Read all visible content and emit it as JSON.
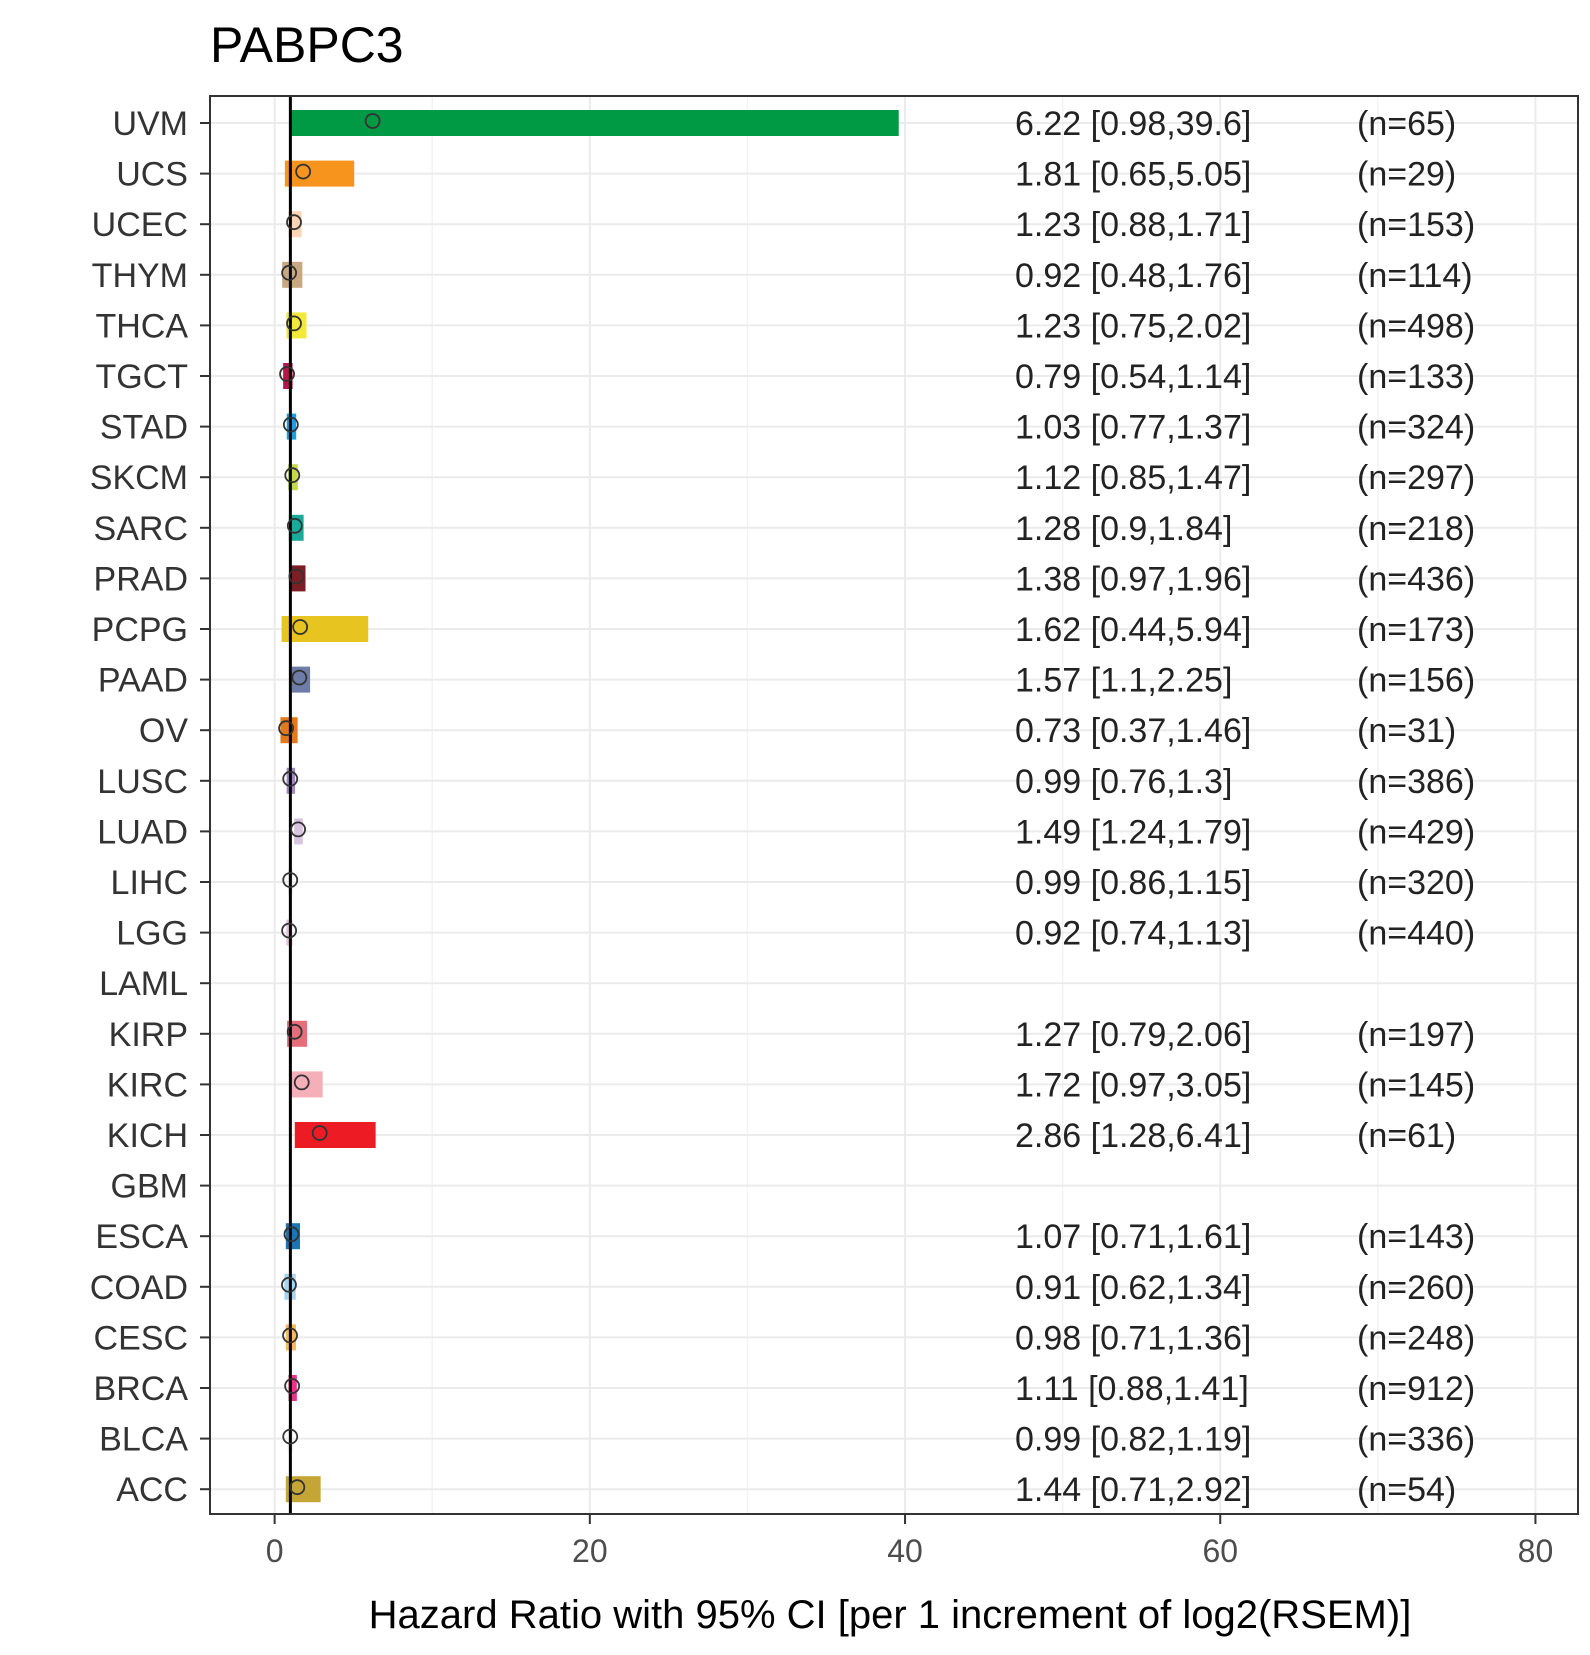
{
  "chart_data": {
    "type": "forest",
    "title": "PABPC3",
    "xlabel": "Hazard Ratio with 95% CI [per 1 increment of log2(RSEM)]",
    "ylabel": "",
    "xlim": [
      -4.1,
      82.7
    ],
    "xticks": [
      0,
      20,
      40,
      60,
      80
    ],
    "reference_line": 1,
    "grid": true,
    "rows": [
      {
        "cancer": "UVM",
        "hr": 6.22,
        "lo": 0.98,
        "hi": 39.6,
        "label": "6.22 [0.98,39.6]",
        "n": "(n=65)",
        "color": "#009944"
      },
      {
        "cancer": "UCS",
        "hr": 1.81,
        "lo": 0.65,
        "hi": 5.05,
        "label": "1.81 [0.65,5.05]",
        "n": "(n=29)",
        "color": "#F7941D"
      },
      {
        "cancer": "UCEC",
        "hr": 1.23,
        "lo": 0.88,
        "hi": 1.71,
        "label": "1.23 [0.88,1.71]",
        "n": "(n=153)",
        "color": "#FBD5B5"
      },
      {
        "cancer": "THYM",
        "hr": 0.92,
        "lo": 0.48,
        "hi": 1.76,
        "label": "0.92 [0.48,1.76]",
        "n": "(n=114)",
        "color": "#C8A882"
      },
      {
        "cancer": "THCA",
        "hr": 1.23,
        "lo": 0.75,
        "hi": 2.02,
        "label": "1.23 [0.75,2.02]",
        "n": "(n=498)",
        "color": "#F2E93A"
      },
      {
        "cancer": "TGCT",
        "hr": 0.79,
        "lo": 0.54,
        "hi": 1.14,
        "label": "0.79 [0.54,1.14]",
        "n": "(n=133)",
        "color": "#B5174B"
      },
      {
        "cancer": "STAD",
        "hr": 1.03,
        "lo": 0.77,
        "hi": 1.37,
        "label": "1.03 [0.77,1.37]",
        "n": "(n=324)",
        "color": "#1B9FE0"
      },
      {
        "cancer": "SKCM",
        "hr": 1.12,
        "lo": 0.85,
        "hi": 1.47,
        "label": "1.12 [0.85,1.47]",
        "n": "(n=297)",
        "color": "#C4D84A"
      },
      {
        "cancer": "SARC",
        "hr": 1.28,
        "lo": 0.9,
        "hi": 1.84,
        "label": "1.28 [0.9,1.84]",
        "n": "(n=218)",
        "color": "#1AAA9A"
      },
      {
        "cancer": "PRAD",
        "hr": 1.38,
        "lo": 0.97,
        "hi": 1.96,
        "label": "1.38 [0.97,1.96]",
        "n": "(n=436)",
        "color": "#7B1F24"
      },
      {
        "cancer": "PCPG",
        "hr": 1.62,
        "lo": 0.44,
        "hi": 5.94,
        "label": "1.62 [0.44,5.94]",
        "n": "(n=173)",
        "color": "#E8C421"
      },
      {
        "cancer": "PAAD",
        "hr": 1.57,
        "lo": 1.1,
        "hi": 2.25,
        "label": "1.57 [1.1,2.25]",
        "n": "(n=156)",
        "color": "#6E7CA8"
      },
      {
        "cancer": "OV",
        "hr": 0.73,
        "lo": 0.37,
        "hi": 1.46,
        "label": "0.73 [0.37,1.46]",
        "n": "(n=31)",
        "color": "#E07A1F"
      },
      {
        "cancer": "LUSC",
        "hr": 0.99,
        "lo": 0.76,
        "hi": 1.3,
        "label": "0.99 [0.76,1.3]",
        "n": "(n=386)",
        "color": "#A389BE"
      },
      {
        "cancer": "LUAD",
        "hr": 1.49,
        "lo": 1.24,
        "hi": 1.79,
        "label": "1.49 [1.24,1.79]",
        "n": "(n=429)",
        "color": "#D9C4E0"
      },
      {
        "cancer": "LIHC",
        "hr": 0.99,
        "lo": 0.86,
        "hi": 1.15,
        "label": "0.99 [0.86,1.15]",
        "n": "(n=320)",
        "color": "#E8E8E8"
      },
      {
        "cancer": "LGG",
        "hr": 0.92,
        "lo": 0.74,
        "hi": 1.13,
        "label": "0.92 [0.74,1.13]",
        "n": "(n=440)",
        "color": "#E5C4DD"
      },
      {
        "cancer": "LAML",
        "hr": null,
        "lo": null,
        "hi": null,
        "label": "",
        "n": "",
        "color": ""
      },
      {
        "cancer": "KIRP",
        "hr": 1.27,
        "lo": 0.79,
        "hi": 2.06,
        "label": "1.27 [0.79,2.06]",
        "n": "(n=197)",
        "color": "#E46E7A"
      },
      {
        "cancer": "KIRC",
        "hr": 1.72,
        "lo": 0.97,
        "hi": 3.05,
        "label": "1.72 [0.97,3.05]",
        "n": "(n=145)",
        "color": "#F5AFB8"
      },
      {
        "cancer": "KICH",
        "hr": 2.86,
        "lo": 1.28,
        "hi": 6.41,
        "label": "2.86 [1.28,6.41]",
        "n": "(n=61)",
        "color": "#ED1C24"
      },
      {
        "cancer": "GBM",
        "hr": null,
        "lo": null,
        "hi": null,
        "label": "",
        "n": "",
        "color": ""
      },
      {
        "cancer": "ESCA",
        "hr": 1.07,
        "lo": 0.71,
        "hi": 1.61,
        "label": "1.07 [0.71,1.61]",
        "n": "(n=143)",
        "color": "#1976B0"
      },
      {
        "cancer": "COAD",
        "hr": 0.91,
        "lo": 0.62,
        "hi": 1.34,
        "label": "0.91 [0.62,1.34]",
        "n": "(n=260)",
        "color": "#A6D4F0"
      },
      {
        "cancer": "CESC",
        "hr": 0.98,
        "lo": 0.71,
        "hi": 1.36,
        "label": "0.98 [0.71,1.36]",
        "n": "(n=248)",
        "color": "#F5B85A"
      },
      {
        "cancer": "BRCA",
        "hr": 1.11,
        "lo": 0.88,
        "hi": 1.41,
        "label": "1.11 [0.88,1.41]",
        "n": "(n=912)",
        "color": "#E8338B"
      },
      {
        "cancer": "BLCA",
        "hr": 0.99,
        "lo": 0.82,
        "hi": 1.19,
        "label": "0.99 [0.82,1.19]",
        "n": "(n=336)",
        "color": "#F0F0F0"
      },
      {
        "cancer": "ACC",
        "hr": 1.44,
        "lo": 0.71,
        "hi": 2.92,
        "label": "1.44 [0.71,2.92]",
        "n": "(n=54)",
        "color": "#C4A535"
      }
    ]
  }
}
